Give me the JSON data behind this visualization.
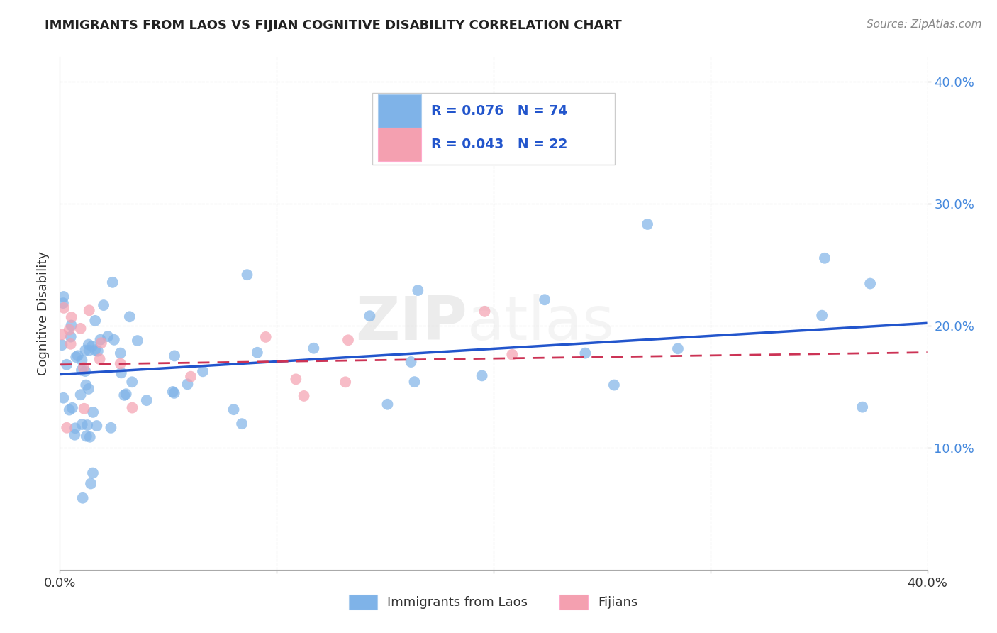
{
  "title": "IMMIGRANTS FROM LAOS VS FIJIAN COGNITIVE DISABILITY CORRELATION CHART",
  "source_text": "Source: ZipAtlas.com",
  "ylabel": "Cognitive Disability",
  "xlim": [
    0.0,
    0.4
  ],
  "ylim": [
    0.0,
    0.42
  ],
  "grid_color": "#bbbbbb",
  "blue_color": "#7fb3e8",
  "pink_color": "#f4a0b0",
  "blue_line_color": "#2255cc",
  "pink_line_color": "#cc3355",
  "legend_r1": "R = 0.076",
  "legend_n1": "N = 74",
  "legend_r2": "R = 0.043",
  "legend_n2": "N = 22",
  "legend_label1": "Immigrants from Laos",
  "legend_label2": "Fijians",
  "watermark_zip": "ZIP",
  "watermark_atlas": "atlas",
  "blue_line_x": [
    0.0,
    0.4
  ],
  "blue_line_y": [
    0.16,
    0.202
  ],
  "pink_line_x": [
    0.0,
    0.4
  ],
  "pink_line_y": [
    0.168,
    0.178
  ],
  "ytick_color": "#4488dd",
  "xtick_color": "#333333",
  "marker_size": 130
}
